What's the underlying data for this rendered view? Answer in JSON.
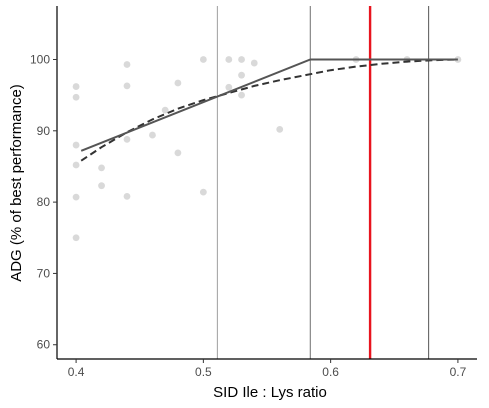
{
  "chart_data": {
    "type": "scatter",
    "xlabel": "SID Ile : Lys ratio",
    "ylabel": "ADG (% of best performance)",
    "xlim": [
      0.385,
      0.715
    ],
    "ylim": [
      58,
      107.5
    ],
    "x_ticks": [
      0.4,
      0.5,
      0.6,
      0.7
    ],
    "x_tick_labels": [
      "0.4",
      "0.5",
      "0.6",
      "0.7"
    ],
    "y_ticks": [
      60,
      70,
      80,
      90,
      100
    ],
    "y_tick_labels": [
      "60",
      "70",
      "80",
      "90",
      "100"
    ],
    "grid": false,
    "legend": "none",
    "points": {
      "color": "#d9d9d9",
      "x": [
        0.4,
        0.4,
        0.4,
        0.4,
        0.4,
        0.4,
        0.42,
        0.42,
        0.44,
        0.44,
        0.44,
        0.44,
        0.46,
        0.47,
        0.48,
        0.48,
        0.5,
        0.5,
        0.52,
        0.52,
        0.53,
        0.53,
        0.53,
        0.54,
        0.56,
        0.62,
        0.66,
        0.7
      ],
      "y": [
        96.2,
        94.7,
        88.0,
        85.2,
        80.7,
        75.0,
        84.8,
        82.3,
        99.3,
        96.3,
        88.8,
        80.8,
        89.4,
        92.9,
        96.7,
        86.9,
        100.0,
        81.4,
        100.0,
        96.1,
        100.0,
        97.8,
        95.0,
        99.5,
        90.2,
        100.0,
        100.0,
        100.0
      ]
    },
    "broken_line": {
      "color": "#555555",
      "x": [
        0.404,
        0.584,
        0.7
      ],
      "y": [
        87.2,
        100.0,
        100.0
      ]
    },
    "curvilinear": {
      "color": "#333333",
      "style": "dashed",
      "x": [
        0.404,
        0.42,
        0.44,
        0.46,
        0.48,
        0.5,
        0.52,
        0.54,
        0.56,
        0.58,
        0.6,
        0.62,
        0.64,
        0.66,
        0.68,
        0.7
      ],
      "y": [
        85.8,
        87.7,
        89.8,
        91.6,
        93.1,
        94.3,
        95.3,
        96.3,
        97.1,
        97.8,
        98.5,
        99.0,
        99.4,
        99.7,
        99.9,
        100.0
      ]
    },
    "vertical_lines": [
      {
        "x": 0.511,
        "color": "#9e9e9e"
      },
      {
        "x": 0.584,
        "color": "#6e6e6e"
      },
      {
        "x": 0.631,
        "color": "#e8141e"
      },
      {
        "x": 0.677,
        "color": "#555555"
      }
    ],
    "axis_color": "#000000"
  }
}
